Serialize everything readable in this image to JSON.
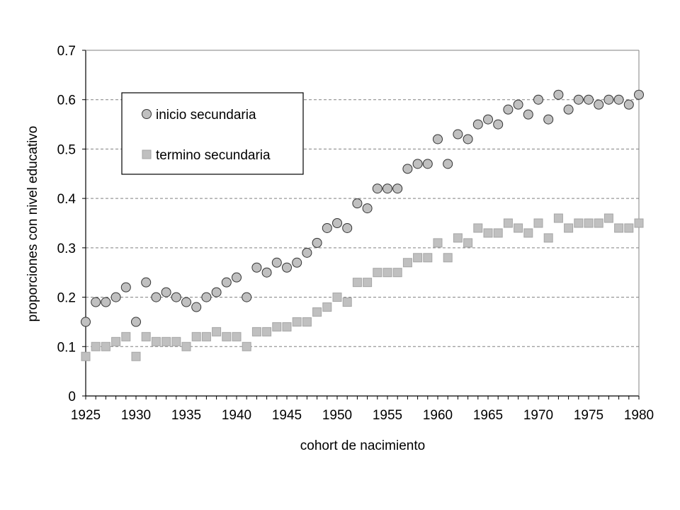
{
  "chart_data": {
    "type": "scatter",
    "xlabel": "cohort de nacimiento",
    "ylabel": "proporciones con nivel educativo",
    "xlim": [
      1925,
      1980
    ],
    "ylim": [
      0,
      0.7
    ],
    "xticks": [
      "1925",
      "1930",
      "1935",
      "1940",
      "1945",
      "1950",
      "1955",
      "1960",
      "1965",
      "1970",
      "1975",
      "1980"
    ],
    "yticks": [
      "0",
      "0.1",
      "0.2",
      "0.3",
      "0.4",
      "0.5",
      "0.6",
      "0.7"
    ],
    "grid": "horizontal dashed",
    "legend_position": "top-left",
    "series": [
      {
        "name": "inicio secundaria",
        "marker": "circle",
        "color": "#c0c0c0",
        "x": [
          1925,
          1926,
          1927,
          1928,
          1929,
          1930,
          1931,
          1932,
          1933,
          1934,
          1935,
          1936,
          1937,
          1938,
          1939,
          1940,
          1941,
          1942,
          1943,
          1944,
          1945,
          1946,
          1947,
          1948,
          1949,
          1950,
          1951,
          1952,
          1953,
          1954,
          1955,
          1956,
          1957,
          1958,
          1959,
          1960,
          1961,
          1962,
          1963,
          1964,
          1965,
          1966,
          1967,
          1968,
          1969,
          1970,
          1971,
          1972,
          1973,
          1974,
          1975,
          1976,
          1977,
          1978,
          1979,
          1980
        ],
        "y": [
          0.15,
          0.19,
          0.19,
          0.2,
          0.22,
          0.15,
          0.23,
          0.2,
          0.21,
          0.2,
          0.19,
          0.18,
          0.2,
          0.21,
          0.23,
          0.24,
          0.2,
          0.26,
          0.25,
          0.27,
          0.26,
          0.27,
          0.29,
          0.31,
          0.34,
          0.35,
          0.34,
          0.39,
          0.38,
          0.42,
          0.42,
          0.42,
          0.46,
          0.47,
          0.47,
          0.52,
          0.47,
          0.53,
          0.52,
          0.55,
          0.56,
          0.55,
          0.58,
          0.59,
          0.57,
          0.6,
          0.56,
          0.61,
          0.58,
          0.6,
          0.6,
          0.59,
          0.6,
          0.6,
          0.59,
          0.61
        ]
      },
      {
        "name": "termino secundaria",
        "marker": "square",
        "color": "#c0c0c0",
        "x": [
          1925,
          1926,
          1927,
          1928,
          1929,
          1930,
          1931,
          1932,
          1933,
          1934,
          1935,
          1936,
          1937,
          1938,
          1939,
          1940,
          1941,
          1942,
          1943,
          1944,
          1945,
          1946,
          1947,
          1948,
          1949,
          1950,
          1951,
          1952,
          1953,
          1954,
          1955,
          1956,
          1957,
          1958,
          1959,
          1960,
          1961,
          1962,
          1963,
          1964,
          1965,
          1966,
          1967,
          1968,
          1969,
          1970,
          1971,
          1972,
          1973,
          1974,
          1975,
          1976,
          1977,
          1978,
          1979,
          1980
        ],
        "y": [
          0.08,
          0.1,
          0.1,
          0.11,
          0.12,
          0.08,
          0.12,
          0.11,
          0.11,
          0.11,
          0.1,
          0.12,
          0.12,
          0.13,
          0.12,
          0.12,
          0.1,
          0.13,
          0.13,
          0.14,
          0.14,
          0.15,
          0.15,
          0.17,
          0.18,
          0.2,
          0.19,
          0.23,
          0.23,
          0.25,
          0.25,
          0.25,
          0.27,
          0.28,
          0.28,
          0.31,
          0.28,
          0.32,
          0.31,
          0.34,
          0.33,
          0.33,
          0.35,
          0.34,
          0.33,
          0.35,
          0.32,
          0.36,
          0.34,
          0.35,
          0.35,
          0.35,
          0.36,
          0.34,
          0.34,
          0.35
        ]
      }
    ]
  }
}
